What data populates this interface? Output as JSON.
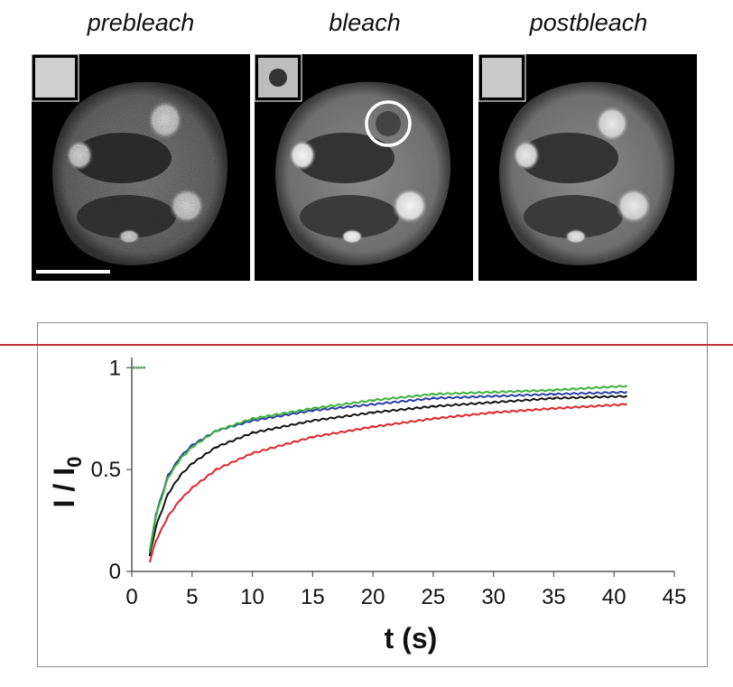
{
  "panel_titles": [
    "prebleach",
    "bleach",
    "postbleach"
  ],
  "colors": {
    "red": "#e0272a",
    "black": "#141414",
    "blue": "#2a3fa8",
    "green": "#3db23a",
    "divider": "#c0313a"
  },
  "chart_data": {
    "type": "line",
    "xlabel": "t (s)",
    "ylabel": "I / I0",
    "ylabel_main": "I / I",
    "ylabel_sub": "0",
    "xlim": [
      0,
      45
    ],
    "ylim": [
      0,
      1.05
    ],
    "xticks": [
      0,
      5,
      10,
      15,
      20,
      25,
      30,
      35,
      40,
      45
    ],
    "yticks": [
      0,
      0.5,
      1
    ],
    "ytick_labels": [
      "0",
      "0.5",
      "1"
    ],
    "grid": false,
    "series": [
      {
        "color": "red",
        "pre": 1.0,
        "x": [
          1.5,
          2,
          3,
          4,
          5,
          7,
          10,
          15,
          20,
          25,
          30,
          35,
          41
        ],
        "y": [
          0.05,
          0.15,
          0.27,
          0.35,
          0.41,
          0.5,
          0.58,
          0.66,
          0.71,
          0.75,
          0.78,
          0.8,
          0.82
        ]
      },
      {
        "color": "black",
        "pre": 1.0,
        "x": [
          1.5,
          2,
          3,
          4,
          5,
          7,
          10,
          15,
          20,
          25,
          30,
          35,
          41
        ],
        "y": [
          0.08,
          0.22,
          0.38,
          0.47,
          0.53,
          0.61,
          0.68,
          0.74,
          0.78,
          0.81,
          0.83,
          0.85,
          0.86
        ]
      },
      {
        "color": "blue",
        "pre": 1.0,
        "x": [
          1.5,
          2,
          3,
          4,
          5,
          7,
          10,
          15,
          20,
          25,
          30,
          35,
          41
        ],
        "y": [
          0.1,
          0.28,
          0.47,
          0.56,
          0.62,
          0.69,
          0.74,
          0.79,
          0.82,
          0.85,
          0.86,
          0.87,
          0.88
        ]
      },
      {
        "color": "green",
        "pre": 1.0,
        "x": [
          1.5,
          2,
          3,
          4,
          5,
          7,
          10,
          15,
          20,
          25,
          30,
          35,
          41
        ],
        "y": [
          0.1,
          0.27,
          0.46,
          0.55,
          0.61,
          0.69,
          0.75,
          0.8,
          0.84,
          0.87,
          0.88,
          0.89,
          0.91
        ]
      }
    ]
  }
}
